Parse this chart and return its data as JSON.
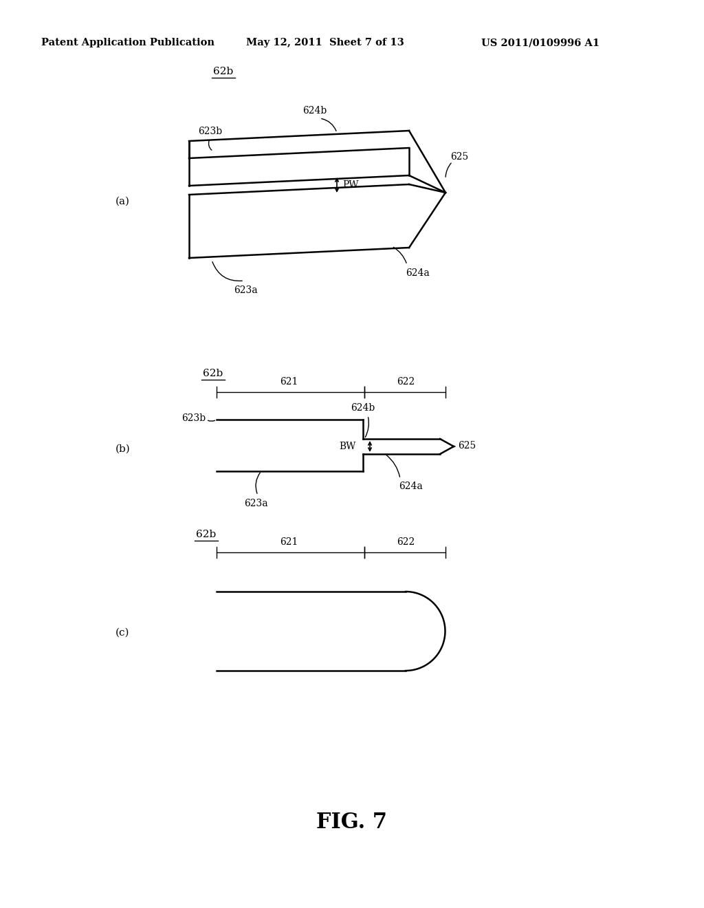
{
  "bg_color": "#ffffff",
  "header_left": "Patent Application Publication",
  "header_mid": "May 12, 2011  Sheet 7 of 13",
  "header_right": "US 2011/0109996 A1",
  "fig_label": "FIG. 7"
}
